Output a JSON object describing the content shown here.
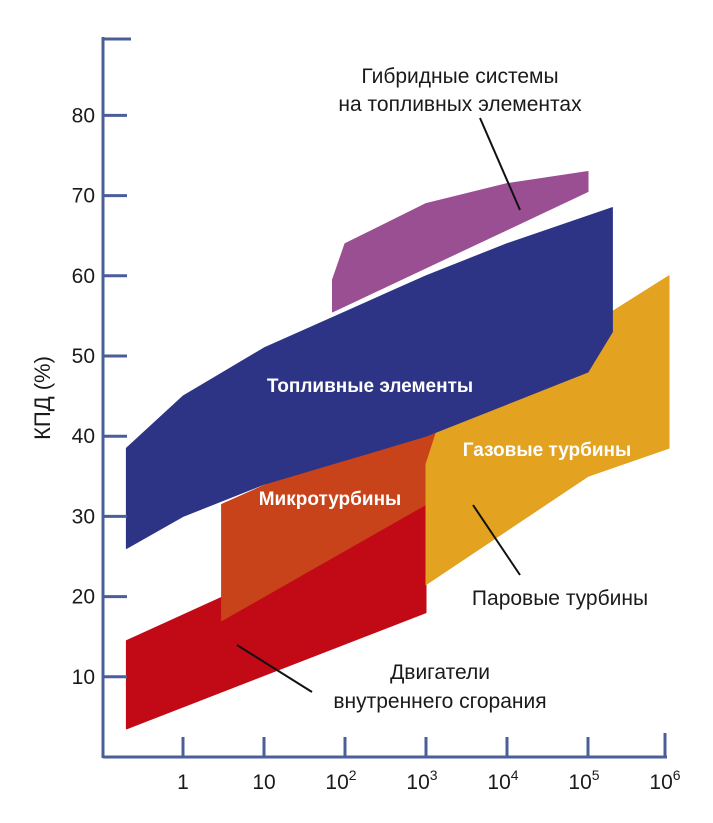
{
  "chart_data": {
    "type": "area",
    "ylabel": "КПД (%)",
    "xlabel": "",
    "xscale": "log",
    "x_ticks": [
      {
        "value": 1,
        "base": "1",
        "exp": ""
      },
      {
        "value": 10,
        "base": "10",
        "exp": ""
      },
      {
        "value": 100,
        "base": "10",
        "exp": "2"
      },
      {
        "value": 1000,
        "base": "10",
        "exp": "3"
      },
      {
        "value": 10000,
        "base": "10",
        "exp": "4"
      },
      {
        "value": 100000,
        "base": "10",
        "exp": "5"
      },
      {
        "value": 1000000,
        "base": "10",
        "exp": "6"
      }
    ],
    "y_ticks": [
      10,
      20,
      30,
      40,
      50,
      60,
      70,
      80
    ],
    "xlim": [
      0.1,
      1000000
    ],
    "ylim": [
      0,
      88
    ],
    "grid": false,
    "colors": {
      "axis": "#4a5f9a",
      "hybrid": "#9b4f93",
      "fuel_cells": "#2e3485",
      "gas_turbines": "#e3a21f",
      "microturbines": "#c8421a",
      "ice": "#c20a17"
    },
    "regions": [
      {
        "id": "ice",
        "label_lines": [
          "Двигатели",
          "внутреннего сгорания"
        ],
        "labeled_inside": false,
        "upper": {
          "x": [
            0.2,
            1000
          ],
          "y": [
            14.5,
            31.5
          ]
        },
        "lower": {
          "x": [
            0.2,
            1000
          ],
          "y": [
            3.5,
            18
          ]
        }
      },
      {
        "id": "microturbines",
        "label_lines": [
          "Микротурбины"
        ],
        "labeled_inside": true,
        "upper": {
          "x": [
            3,
            30,
            300,
            1500
          ],
          "y": [
            31.5,
            36,
            40,
            43.5
          ]
        },
        "lower": {
          "x": [
            3,
            1000
          ],
          "y": [
            17,
            31.5
          ]
        }
      },
      {
        "id": "gas_turbines",
        "label_lines": [
          "Газовые турбины"
        ],
        "labeled_inside": true,
        "upper": {
          "x": [
            1000,
            1500,
            1000000
          ],
          "y": [
            36.5,
            42,
            60
          ]
        },
        "lower": {
          "x": [
            1000,
            100000,
            1000000
          ],
          "y": [
            21.5,
            35,
            38.5
          ]
        }
      },
      {
        "id": "steam_turbines",
        "label_lines": [
          "Паровые турбины"
        ],
        "labeled_inside": false,
        "note": "callout pointing to the gas-turbine-coloured band",
        "upper": {
          "x": [],
          "y": []
        },
        "lower": {
          "x": [],
          "y": []
        }
      },
      {
        "id": "fuel_cells",
        "label_lines": [
          "Топливные элементы"
        ],
        "labeled_inside": true,
        "upper": {
          "x": [
            0.2,
            1,
            10,
            100,
            1000,
            10000,
            200000
          ],
          "y": [
            38.5,
            45,
            51,
            55.5,
            60,
            64,
            68.5
          ]
        },
        "lower": {
          "x": [
            0.2,
            1,
            10,
            100,
            1000,
            10000,
            100000,
            200000
          ],
          "y": [
            26,
            30,
            34,
            37,
            40,
            44,
            48,
            53
          ]
        }
      },
      {
        "id": "hybrid",
        "label_lines": [
          "Гибридные системы",
          "на топливных элементах"
        ],
        "labeled_inside": false,
        "upper": {
          "x": [
            70,
            100,
            1000,
            10000,
            100000,
            100000
          ],
          "y": [
            59.5,
            64,
            69,
            71.5,
            73,
            70.5
          ]
        },
        "lower": {
          "x": [
            70,
            100000
          ],
          "y": [
            55.5,
            70.5
          ]
        }
      }
    ]
  }
}
